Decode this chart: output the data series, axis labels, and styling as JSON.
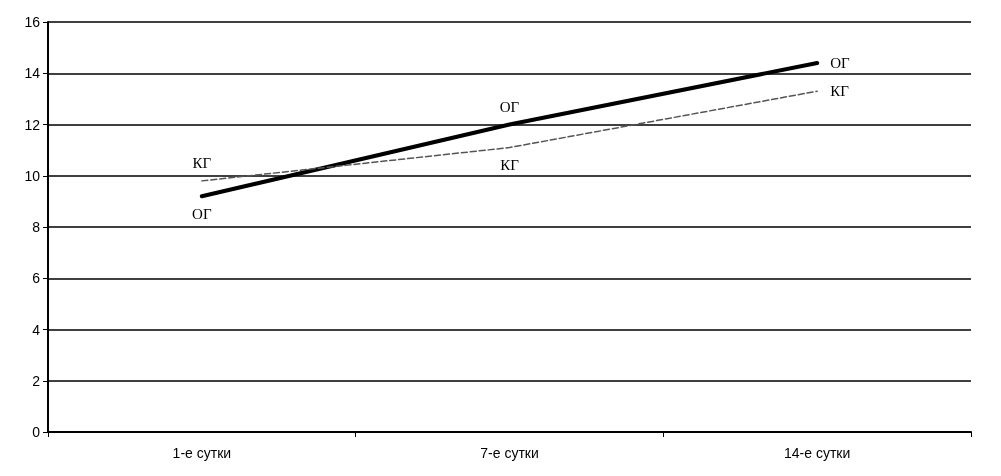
{
  "chart_data": {
    "type": "line",
    "categories": [
      "1-е сутки",
      "7-е сутки",
      "14-е сутки"
    ],
    "series": [
      {
        "name": "ОГ",
        "color": "#000000",
        "values": [
          9.2,
          12.0,
          14.4
        ],
        "line_style": "solid"
      },
      {
        "name": "КГ",
        "color": "#555555",
        "values": [
          9.8,
          11.1,
          13.3
        ],
        "line_style": "dashed"
      }
    ],
    "ylim": [
      0,
      16
    ],
    "yticks": [
      0,
      2,
      4,
      6,
      8,
      10,
      12,
      14,
      16
    ],
    "grid": "y",
    "marker": "none",
    "legend": false
  }
}
